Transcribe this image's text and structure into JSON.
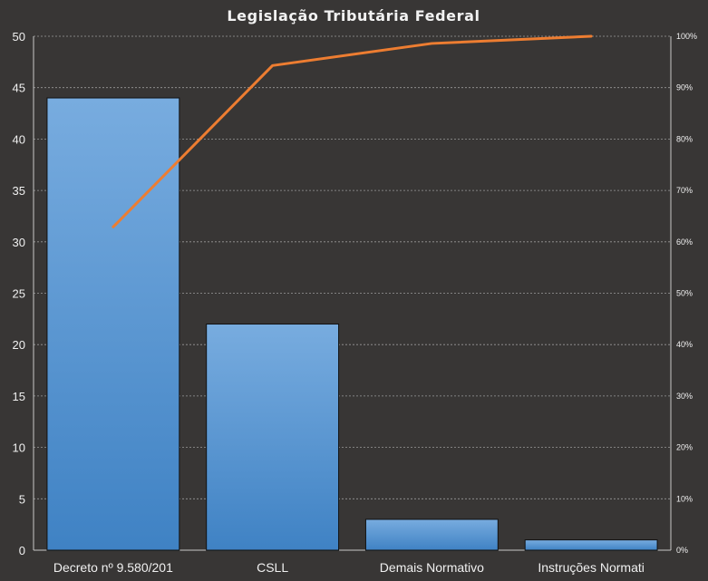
{
  "chart_data": {
    "type": "bar",
    "title": "Legislação Tributária Federal",
    "categories": [
      "Decreto nº 9.580/201",
      "CSLL",
      "Demais Normativo",
      "Instruções Normati"
    ],
    "series": [
      {
        "type": "bar",
        "axis": "left",
        "values": [
          44,
          22,
          3,
          1
        ]
      },
      {
        "type": "line",
        "axis": "right",
        "values": [
          62.9,
          94.3,
          98.6,
          100
        ]
      }
    ],
    "y_left": {
      "ylim": [
        0,
        50
      ],
      "ticks": [
        "0",
        "5",
        "10",
        "15",
        "20",
        "25",
        "30",
        "35",
        "40",
        "45",
        "50"
      ]
    },
    "y_right": {
      "ylim": [
        0,
        100
      ],
      "ticks": [
        "0%",
        "10%",
        "20%",
        "30%",
        "40%",
        "50%",
        "60%",
        "70%",
        "80%",
        "90%",
        "100%"
      ]
    },
    "grid": true,
    "legend": "none",
    "colors": {
      "background": "#383635",
      "bar": "#5b9bd5",
      "bar_light": "#78acdf",
      "bar_dark": "#3f82c4",
      "line": "#ed7d31",
      "grid": "#9a9a9a",
      "text": "#f0f0f0"
    }
  }
}
